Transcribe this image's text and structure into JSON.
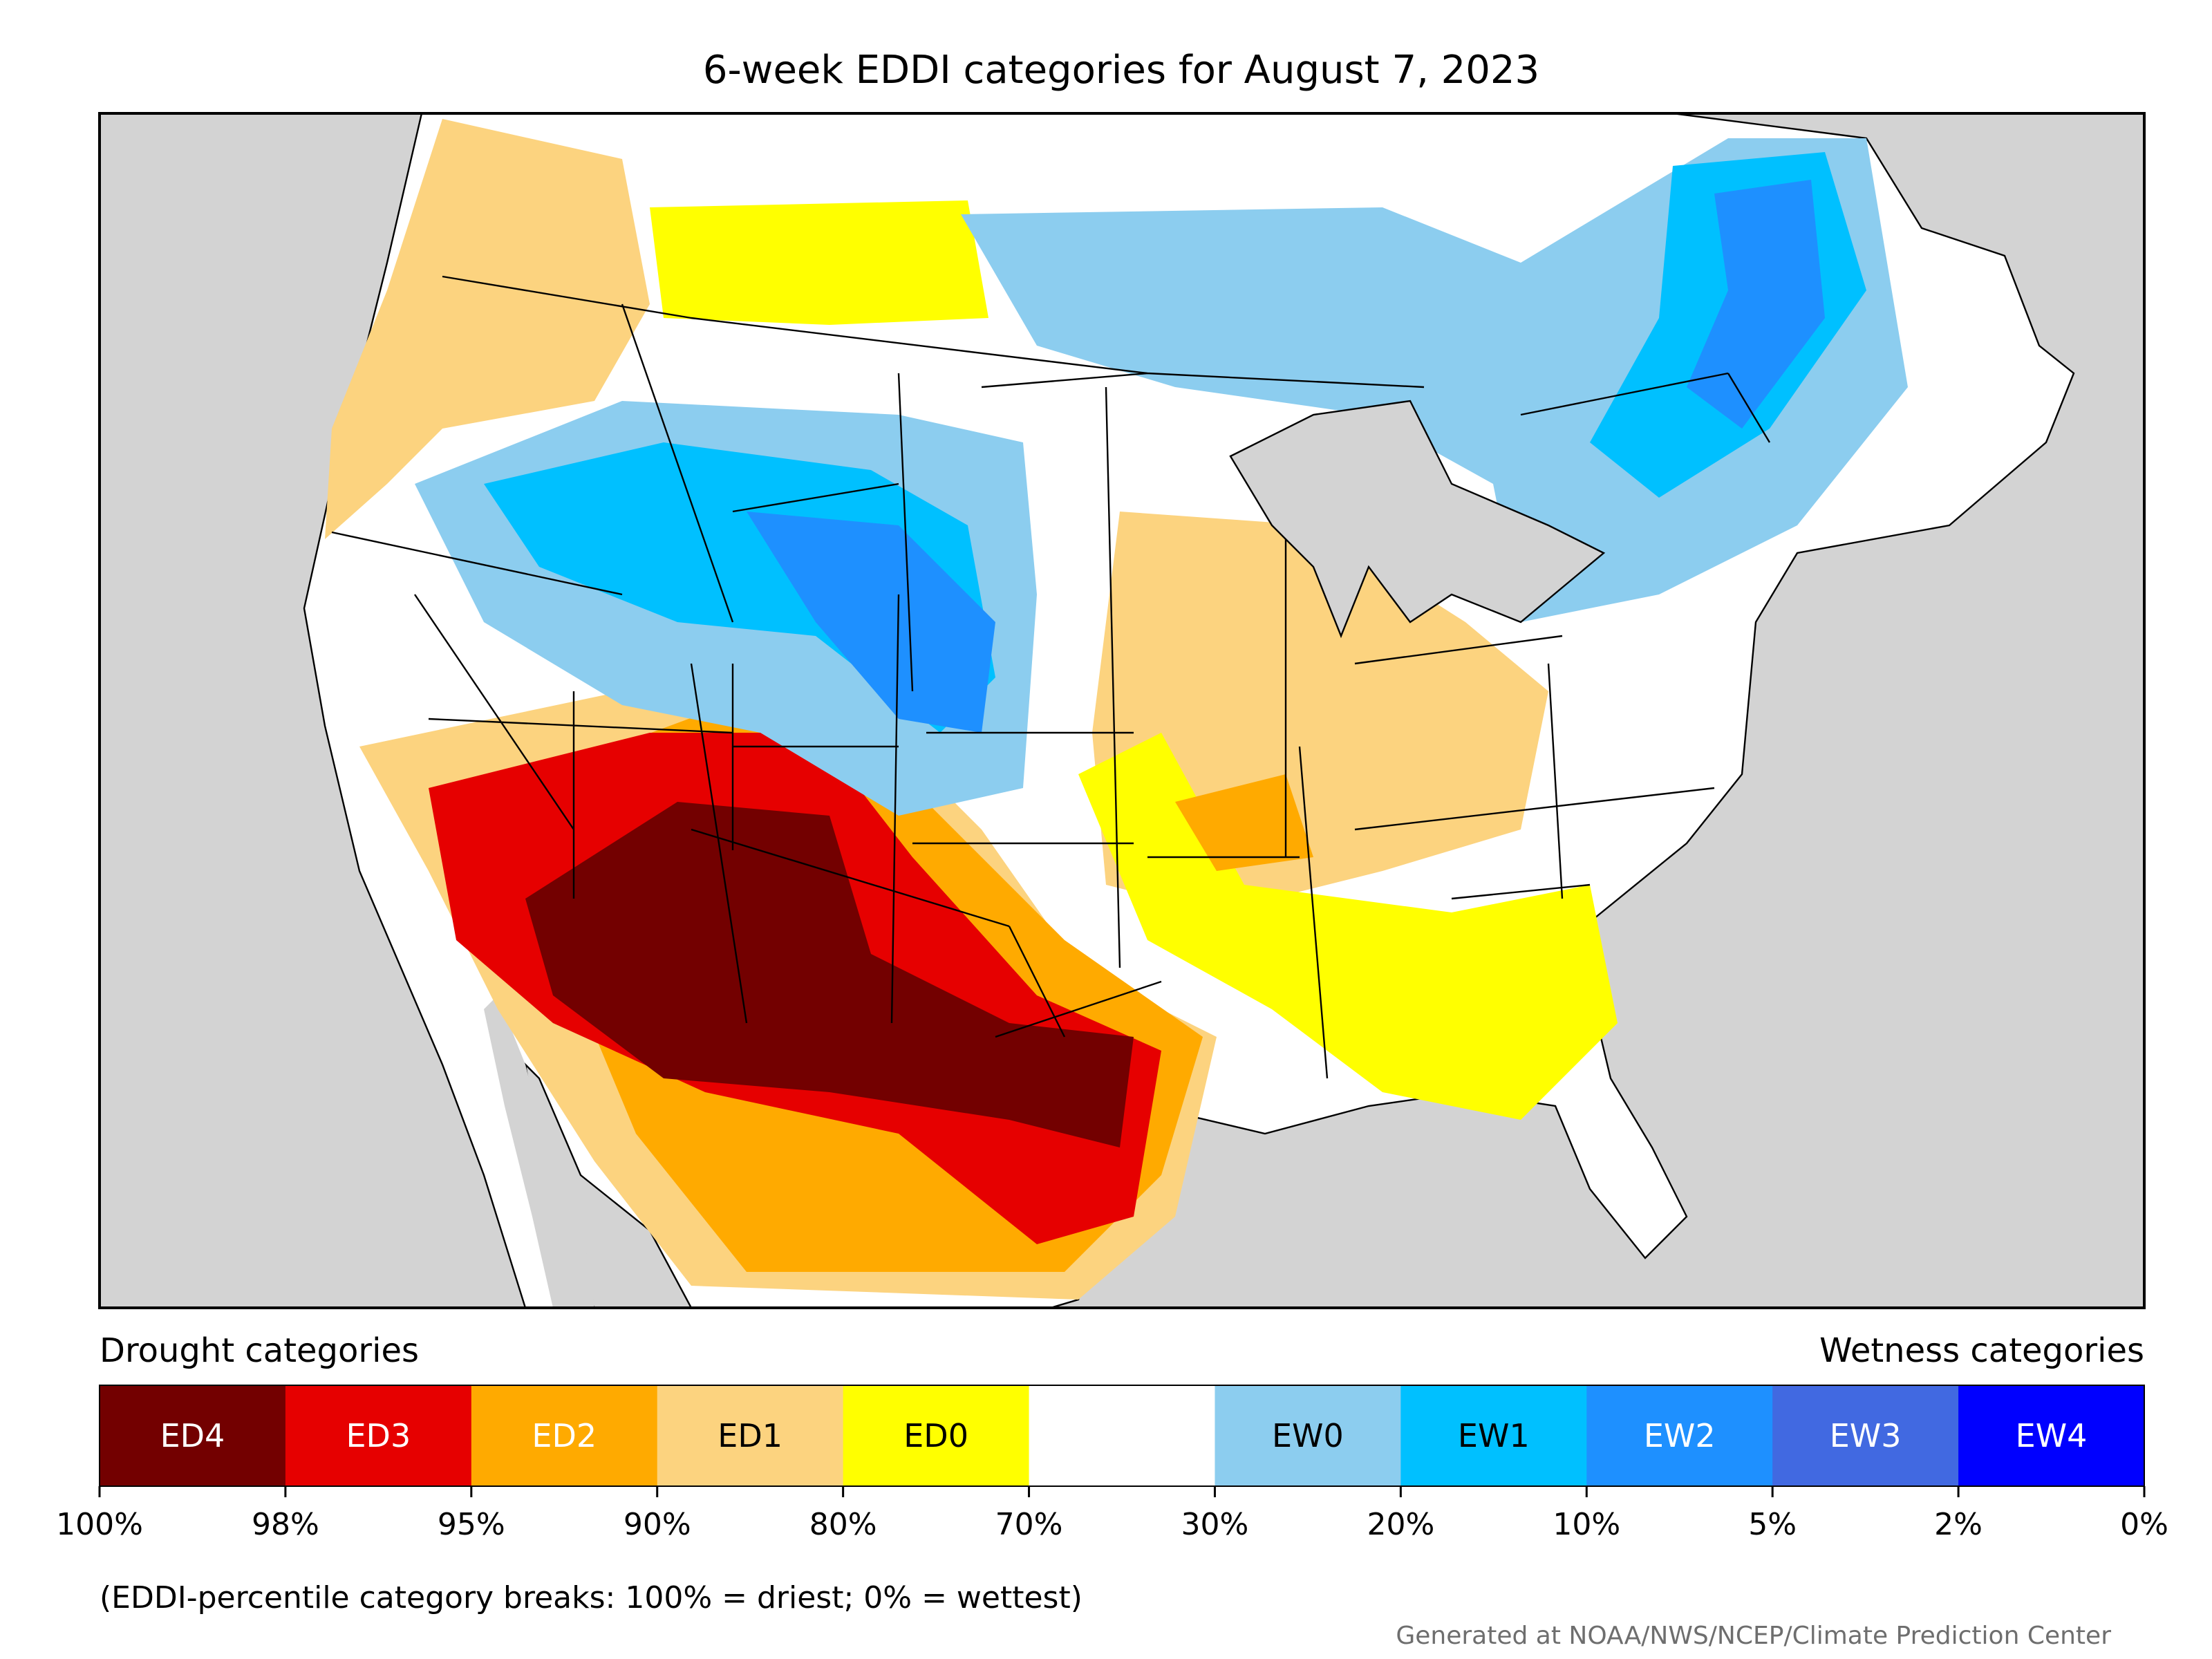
{
  "title": "6-week EDDI categories for August 7, 2023",
  "legend": {
    "drought_heading": "Drought categories",
    "wetness_heading": "Wetness categories",
    "categories": [
      {
        "label": "ED4",
        "color": "#730000",
        "text_color": "#ffffff"
      },
      {
        "label": "ED3",
        "color": "#e60000",
        "text_color": "#ffffff"
      },
      {
        "label": "ED2",
        "color": "#ffaa00",
        "text_color": "#ffffff"
      },
      {
        "label": "ED1",
        "color": "#fcd37f",
        "text_color": "#000000"
      },
      {
        "label": "ED0",
        "color": "#ffff00",
        "text_color": "#000000"
      },
      {
        "label": "",
        "color": "#ffffff",
        "text_color": "#000000"
      },
      {
        "label": "EW0",
        "color": "#8ccdef",
        "text_color": "#000000"
      },
      {
        "label": "EW1",
        "color": "#00c0ff",
        "text_color": "#000000"
      },
      {
        "label": "EW2",
        "color": "#1e90ff",
        "text_color": "#ffffff"
      },
      {
        "label": "EW3",
        "color": "#4169e1",
        "text_color": "#ffffff"
      },
      {
        "label": "EW4",
        "color": "#0000ff",
        "text_color": "#ffffff"
      }
    ],
    "ticks": [
      "100%",
      "98%",
      "95%",
      "90%",
      "80%",
      "70%",
      "30%",
      "20%",
      "10%",
      "5%",
      "2%",
      "0%"
    ],
    "note": "(EDDI-percentile category breaks: 100% = driest; 0% = wettest)"
  },
  "credit": "Generated at NOAA/NWS/NCEP/Climate Prediction Center",
  "map": {
    "ocean_color": "#d3d3d3",
    "land_color": "#ffffff",
    "lake_color": "#d3d3d3"
  }
}
